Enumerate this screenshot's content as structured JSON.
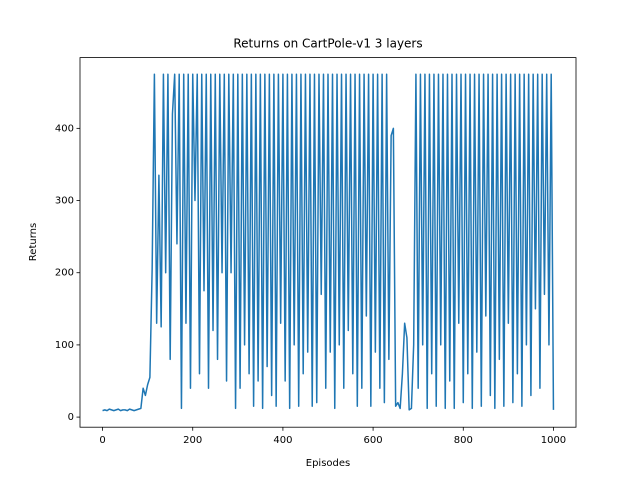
{
  "chart_data": {
    "type": "line",
    "title": "Returns on CartPole-v1 3 layers",
    "x_label": "Episodes",
    "y_label": "Returns",
    "xlim": [
      -50,
      1050
    ],
    "ylim": [
      -14,
      498
    ],
    "xticks": [
      0,
      200,
      400,
      600,
      800,
      1000
    ],
    "yticks": [
      0,
      100,
      200,
      300,
      400
    ],
    "grid": false,
    "x": [
      0,
      5,
      10,
      15,
      20,
      25,
      30,
      35,
      40,
      45,
      50,
      55,
      60,
      65,
      70,
      75,
      80,
      85,
      90,
      95,
      100,
      105,
      110,
      115,
      120,
      125,
      130,
      135,
      140,
      145,
      150,
      155,
      160,
      165,
      170,
      175,
      180,
      185,
      190,
      195,
      200,
      205,
      210,
      215,
      220,
      225,
      230,
      235,
      240,
      245,
      250,
      255,
      260,
      265,
      270,
      275,
      280,
      285,
      290,
      295,
      300,
      305,
      310,
      315,
      320,
      325,
      330,
      335,
      340,
      345,
      350,
      355,
      360,
      365,
      370,
      375,
      380,
      385,
      390,
      395,
      400,
      405,
      410,
      415,
      420,
      425,
      430,
      435,
      440,
      445,
      450,
      455,
      460,
      465,
      470,
      475,
      480,
      485,
      490,
      495,
      500,
      505,
      510,
      515,
      520,
      525,
      530,
      535,
      540,
      545,
      550,
      555,
      560,
      565,
      570,
      575,
      580,
      585,
      590,
      595,
      600,
      605,
      610,
      615,
      620,
      625,
      630,
      635,
      640,
      645,
      650,
      655,
      660,
      665,
      670,
      675,
      680,
      685,
      690,
      695,
      700,
      705,
      710,
      715,
      720,
      725,
      730,
      735,
      740,
      745,
      750,
      755,
      760,
      765,
      770,
      775,
      780,
      785,
      790,
      795,
      800,
      805,
      810,
      815,
      820,
      825,
      830,
      835,
      840,
      845,
      850,
      855,
      860,
      865,
      870,
      875,
      880,
      885,
      890,
      895,
      900,
      905,
      910,
      915,
      920,
      925,
      930,
      935,
      940,
      945,
      950,
      955,
      960,
      965,
      970,
      975,
      980,
      985,
      990,
      995,
      1000
    ],
    "series": [
      {
        "name": "Returns",
        "color": "#1f77b4",
        "values": [
          9,
          10,
          9,
          11,
          10,
          9,
          10,
          11,
          9,
          10,
          10,
          9,
          11,
          10,
          9,
          10,
          11,
          12,
          40,
          30,
          45,
          55,
          205,
          475,
          130,
          335,
          125,
          475,
          200,
          475,
          80,
          420,
          475,
          240,
          475,
          12,
          475,
          130,
          475,
          40,
          475,
          300,
          475,
          60,
          475,
          175,
          475,
          40,
          475,
          120,
          475,
          80,
          475,
          200,
          475,
          50,
          475,
          200,
          475,
          12,
          475,
          40,
          475,
          100,
          475,
          60,
          475,
          15,
          475,
          50,
          475,
          12,
          475,
          70,
          475,
          30,
          475,
          15,
          475,
          130,
          475,
          50,
          475,
          12,
          475,
          100,
          475,
          15,
          475,
          60,
          475,
          90,
          475,
          15,
          475,
          20,
          475,
          170,
          475,
          40,
          475,
          90,
          475,
          12,
          475,
          100,
          475,
          40,
          475,
          120,
          475,
          60,
          475,
          15,
          475,
          40,
          475,
          140,
          475,
          15,
          475,
          90,
          475,
          40,
          475,
          20,
          475,
          80,
          390,
          400,
          15,
          20,
          12,
          60,
          130,
          110,
          10,
          12,
          100,
          475,
          40,
          475,
          100,
          475,
          12,
          475,
          60,
          475,
          15,
          475,
          100,
          475,
          12,
          475,
          50,
          475,
          12,
          475,
          130,
          475,
          20,
          475,
          60,
          475,
          12,
          475,
          90,
          475,
          15,
          475,
          140,
          475,
          30,
          475,
          12,
          475,
          80,
          475,
          15,
          475,
          130,
          475,
          20,
          475,
          60,
          475,
          15,
          475,
          100,
          475,
          30,
          475,
          150,
          475,
          40,
          475,
          170,
          475,
          100,
          475,
          10
        ]
      }
    ]
  }
}
